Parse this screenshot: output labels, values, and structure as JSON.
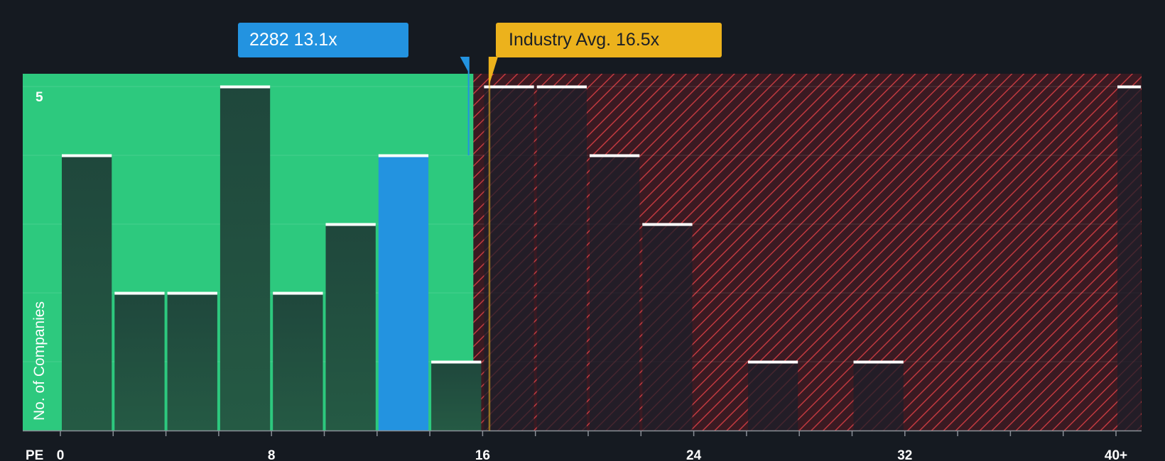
{
  "chart_data": {
    "type": "bar",
    "title": "",
    "xlabel": "PE",
    "ylabel": "No. of Companies",
    "xlim": [
      0,
      41
    ],
    "ylim": [
      0,
      5
    ],
    "bin_width": 2,
    "bins": [
      {
        "start": 0,
        "end": 2,
        "count": 4
      },
      {
        "start": 2,
        "end": 4,
        "count": 2
      },
      {
        "start": 4,
        "end": 6,
        "count": 2
      },
      {
        "start": 6,
        "end": 8,
        "count": 5
      },
      {
        "start": 8,
        "end": 10,
        "count": 2
      },
      {
        "start": 10,
        "end": 12,
        "count": 3
      },
      {
        "start": 12,
        "end": 14,
        "count": 4,
        "highlight": true
      },
      {
        "start": 14,
        "end": 16,
        "count": 1
      },
      {
        "start": 16,
        "end": 18,
        "count": 5
      },
      {
        "start": 18,
        "end": 20,
        "count": 5
      },
      {
        "start": 20,
        "end": 22,
        "count": 4
      },
      {
        "start": 22,
        "end": 24,
        "count": 3
      },
      {
        "start": 26,
        "end": 28,
        "count": 1
      },
      {
        "start": 30,
        "end": 32,
        "count": 1
      },
      {
        "start": 40,
        "end": 41,
        "count": 5
      }
    ],
    "x_ticks": [
      {
        "value": 0,
        "label": "0"
      },
      {
        "value": 8,
        "label": "8"
      },
      {
        "value": 16,
        "label": "16"
      },
      {
        "value": 24,
        "label": "24"
      },
      {
        "value": 32,
        "label": "32"
      },
      {
        "value": 40,
        "label": "40+"
      }
    ],
    "y_ticks": [
      {
        "value": 5,
        "label": "5"
      }
    ],
    "company": {
      "ticker": "2282",
      "pe": 13.1,
      "label": "2282 13.1x"
    },
    "industry": {
      "pe": 16.5,
      "label": "Industry Avg. 16.5x"
    },
    "fair_zone_end": 16,
    "colors": {
      "background": "#151a21",
      "fair_zone": "#2dc97e",
      "bar_fill": "#1f473c",
      "bar_fill_light": "#255a44",
      "highlight_bar": "#2393e0",
      "over_zone": "#3a1a22",
      "hatch": "#c0393f",
      "bar_dark": "#1c1f2a",
      "bar_cap": "#ffffff",
      "company_marker": "#2393e0",
      "industry_marker": "#ecb21c"
    }
  }
}
